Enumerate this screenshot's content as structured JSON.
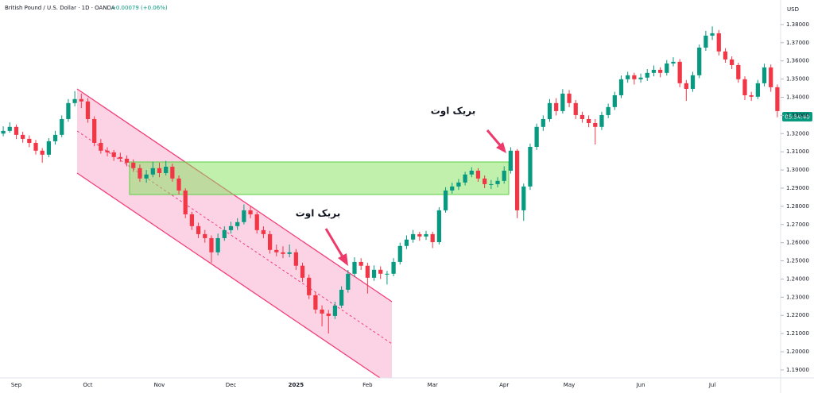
{
  "chart_data": {
    "type": "candlestick",
    "title": "British Pound / U.S. Dollar · 1D · OANDA",
    "change": "+0.00079 (+0.06%)",
    "currency": "USD",
    "countdown": "05:54:40",
    "annotations": [
      "بریک اوت",
      "بریک اوت"
    ],
    "up_color": "#089981",
    "down_color": "#f23645",
    "grid": false,
    "ylim": [
      1.1856,
      1.3935
    ],
    "yticks": [
      {
        "value": 1.19,
        "label": "1.19000"
      },
      {
        "value": 1.2,
        "label": "1.20000"
      },
      {
        "value": 1.21,
        "label": "1.21000"
      },
      {
        "value": 1.22,
        "label": "1.22000"
      },
      {
        "value": 1.23,
        "label": "1.23000"
      },
      {
        "value": 1.24,
        "label": "1.24000"
      },
      {
        "value": 1.25,
        "label": "1.25000"
      },
      {
        "value": 1.26,
        "label": "1.26000"
      },
      {
        "value": 1.27,
        "label": "1.27000"
      },
      {
        "value": 1.28,
        "label": "1.28000"
      },
      {
        "value": 1.29,
        "label": "1.29000"
      },
      {
        "value": 1.3,
        "label": "1.30000"
      },
      {
        "value": 1.31,
        "label": "1.31000"
      },
      {
        "value": 1.32,
        "label": "1.32000"
      },
      {
        "value": 1.33,
        "label": "1.33000"
      },
      {
        "value": 1.34,
        "label": "1.34000"
      },
      {
        "value": 1.35,
        "label": "1.35000"
      },
      {
        "value": 1.36,
        "label": "1.36000"
      },
      {
        "value": 1.37,
        "label": "1.37000"
      },
      {
        "value": 1.38,
        "label": "1.38000"
      }
    ],
    "categories": [
      null,
      null,
      "Sep",
      null,
      null,
      null,
      null,
      null,
      null,
      null,
      null,
      null,
      null,
      "Oct",
      null,
      null,
      null,
      null,
      null,
      null,
      null,
      null,
      null,
      null,
      "Nov",
      null,
      null,
      null,
      null,
      null,
      null,
      null,
      null,
      null,
      null,
      "Dec",
      null,
      null,
      null,
      null,
      null,
      null,
      null,
      null,
      null,
      "2025",
      null,
      null,
      null,
      null,
      null,
      null,
      null,
      null,
      null,
      null,
      "Feb",
      null,
      null,
      null,
      null,
      null,
      null,
      null,
      null,
      null,
      "Mar",
      null,
      null,
      null,
      null,
      null,
      null,
      null,
      null,
      null,
      null,
      "Apr",
      null,
      null,
      null,
      null,
      null,
      null,
      null,
      null,
      null,
      "May",
      null,
      null,
      null,
      null,
      null,
      null,
      null,
      null,
      null,
      null,
      "Jun",
      null,
      null,
      null,
      null,
      null,
      null,
      null,
      null,
      null,
      null,
      "Jul",
      null,
      null,
      null,
      null,
      null,
      null,
      null,
      null,
      null,
      null
    ],
    "ohlc": [
      [
        1.32,
        1.324,
        1.3185,
        1.3215
      ],
      [
        1.3215,
        1.3262,
        1.3205,
        1.3237
      ],
      [
        1.3237,
        1.325,
        1.317,
        1.3193
      ],
      [
        1.3193,
        1.321,
        1.315,
        1.3171
      ],
      [
        1.3171,
        1.319,
        1.3125,
        1.3149
      ],
      [
        1.3149,
        1.3165,
        1.3085,
        1.3106
      ],
      [
        1.3106,
        1.312,
        1.304,
        1.3084
      ],
      [
        1.3084,
        1.3175,
        1.307,
        1.3158
      ],
      [
        1.3158,
        1.3215,
        1.314,
        1.3193
      ],
      [
        1.3193,
        1.33,
        1.318,
        1.328
      ],
      [
        1.328,
        1.339,
        1.3265,
        1.3368
      ],
      [
        1.3368,
        1.3434,
        1.335,
        1.339
      ],
      [
        1.339,
        1.342,
        1.334,
        1.3377
      ],
      [
        1.3377,
        1.3395,
        1.326,
        1.328
      ],
      [
        1.328,
        1.3295,
        1.313,
        1.3149
      ],
      [
        1.3149,
        1.317,
        1.309,
        1.3106
      ],
      [
        1.3106,
        1.3125,
        1.3075,
        1.3097
      ],
      [
        1.3097,
        1.311,
        1.305,
        1.3071
      ],
      [
        1.3071,
        1.3095,
        1.3045,
        1.3062
      ],
      [
        1.3062,
        1.308,
        1.302,
        1.304
      ],
      [
        1.304,
        1.3058,
        1.299,
        1.301
      ],
      [
        1.301,
        1.303,
        1.2935,
        1.2953
      ],
      [
        1.2953,
        1.3,
        1.293,
        1.2975
      ],
      [
        1.2975,
        1.3045,
        1.296,
        1.301
      ],
      [
        1.301,
        1.304,
        1.296,
        1.2983
      ],
      [
        1.2983,
        1.305,
        1.297,
        1.3018
      ],
      [
        1.3018,
        1.3035,
        1.2935,
        1.2953
      ],
      [
        1.2953,
        1.297,
        1.2865,
        1.2887
      ],
      [
        1.2887,
        1.29,
        1.2735,
        1.2756
      ],
      [
        1.2756,
        1.277,
        1.267,
        1.2691
      ],
      [
        1.2691,
        1.271,
        1.2625,
        1.2647
      ],
      [
        1.2647,
        1.267,
        1.26,
        1.2625
      ],
      [
        1.2625,
        1.264,
        1.249,
        1.2547
      ],
      [
        1.2547,
        1.265,
        1.253,
        1.2625
      ],
      [
        1.2625,
        1.269,
        1.261,
        1.2669
      ],
      [
        1.2669,
        1.2715,
        1.265,
        1.2691
      ],
      [
        1.2691,
        1.2735,
        1.267,
        1.2713
      ],
      [
        1.2713,
        1.281,
        1.27,
        1.2778
      ],
      [
        1.2778,
        1.28,
        1.2735,
        1.2756
      ],
      [
        1.2756,
        1.277,
        1.265,
        1.2669
      ],
      [
        1.2669,
        1.269,
        1.2625,
        1.2647
      ],
      [
        1.2647,
        1.2665,
        1.254,
        1.256
      ],
      [
        1.256,
        1.259,
        1.2525,
        1.2547
      ],
      [
        1.2547,
        1.258,
        1.2515,
        1.2538
      ],
      [
        1.2538,
        1.259,
        1.252,
        1.2547
      ],
      [
        1.2547,
        1.2565,
        1.245,
        1.2473
      ],
      [
        1.2473,
        1.249,
        1.2385,
        1.2407
      ],
      [
        1.2407,
        1.2425,
        1.229,
        1.2311
      ],
      [
        1.2311,
        1.233,
        1.221,
        1.2232
      ],
      [
        1.2232,
        1.2255,
        1.214,
        1.221
      ],
      [
        1.221,
        1.223,
        1.21,
        1.2197
      ],
      [
        1.2197,
        1.2275,
        1.218,
        1.2254
      ],
      [
        1.2254,
        1.236,
        1.224,
        1.2341
      ],
      [
        1.2341,
        1.245,
        1.2325,
        1.2429
      ],
      [
        1.2429,
        1.252,
        1.241,
        1.2494
      ],
      [
        1.2494,
        1.2515,
        1.245,
        1.2473
      ],
      [
        1.2473,
        1.249,
        1.232,
        1.2407
      ],
      [
        1.2407,
        1.2475,
        1.239,
        1.2451
      ],
      [
        1.2451,
        1.247,
        1.24,
        1.2429
      ],
      [
        1.2429,
        1.2445,
        1.237,
        1.2429
      ],
      [
        1.2429,
        1.2515,
        1.2415,
        1.2494
      ],
      [
        1.2494,
        1.26,
        1.248,
        1.2582
      ],
      [
        1.2582,
        1.264,
        1.2565,
        1.2617
      ],
      [
        1.2617,
        1.267,
        1.26,
        1.2647
      ],
      [
        1.2647,
        1.266,
        1.261,
        1.2634
      ],
      [
        1.2634,
        1.2665,
        1.2615,
        1.2647
      ],
      [
        1.2647,
        1.266,
        1.257,
        1.2603
      ],
      [
        1.2603,
        1.2795,
        1.259,
        1.2778
      ],
      [
        1.2778,
        1.2905,
        1.2765,
        1.2887
      ],
      [
        1.2887,
        1.293,
        1.287,
        1.2909
      ],
      [
        1.2909,
        1.295,
        1.289,
        1.2931
      ],
      [
        1.2931,
        1.299,
        1.2915,
        1.2975
      ],
      [
        1.2975,
        1.3015,
        1.296,
        1.2996
      ],
      [
        1.2996,
        1.301,
        1.2935,
        1.2953
      ],
      [
        1.2953,
        1.297,
        1.29,
        1.2922
      ],
      [
        1.2922,
        1.2945,
        1.2895,
        1.2922
      ],
      [
        1.2922,
        1.296,
        1.2905,
        1.294
      ],
      [
        1.294,
        1.302,
        1.2925,
        1.2996
      ],
      [
        1.2996,
        1.3125,
        1.298,
        1.3106
      ],
      [
        1.3106,
        1.3115,
        1.2735,
        1.2778
      ],
      [
        1.2778,
        1.2925,
        1.272,
        1.2909
      ],
      [
        1.2909,
        1.3145,
        1.289,
        1.3127
      ],
      [
        1.3127,
        1.3255,
        1.311,
        1.3237
      ],
      [
        1.3237,
        1.33,
        1.3215,
        1.328
      ],
      [
        1.328,
        1.339,
        1.3265,
        1.3368
      ],
      [
        1.3368,
        1.3395,
        1.33,
        1.3324
      ],
      [
        1.3324,
        1.3445,
        1.331,
        1.342
      ],
      [
        1.342,
        1.344,
        1.3345,
        1.3368
      ],
      [
        1.3368,
        1.3385,
        1.328,
        1.3302
      ],
      [
        1.3302,
        1.332,
        1.326,
        1.328
      ],
      [
        1.328,
        1.33,
        1.3235,
        1.3258
      ],
      [
        1.3258,
        1.328,
        1.314,
        1.3237
      ],
      [
        1.3237,
        1.332,
        1.322,
        1.3302
      ],
      [
        1.3302,
        1.3365,
        1.3285,
        1.3346
      ],
      [
        1.3346,
        1.343,
        1.333,
        1.3411
      ],
      [
        1.3411,
        1.352,
        1.3395,
        1.3499
      ],
      [
        1.3499,
        1.354,
        1.348,
        1.3521
      ],
      [
        1.3521,
        1.3535,
        1.347,
        1.3499
      ],
      [
        1.3499,
        1.353,
        1.348,
        1.3508
      ],
      [
        1.3508,
        1.3555,
        1.349,
        1.3534
      ],
      [
        1.3534,
        1.3575,
        1.3515,
        1.3551
      ],
      [
        1.3551,
        1.3565,
        1.351,
        1.3534
      ],
      [
        1.3534,
        1.3605,
        1.352,
        1.3586
      ],
      [
        1.3586,
        1.362,
        1.357,
        1.3595
      ],
      [
        1.3595,
        1.361,
        1.3455,
        1.3477
      ],
      [
        1.3477,
        1.3495,
        1.338,
        1.3446
      ],
      [
        1.3446,
        1.354,
        1.343,
        1.3521
      ],
      [
        1.3521,
        1.369,
        1.3505,
        1.3673
      ],
      [
        1.3673,
        1.3765,
        1.3655,
        1.3739
      ],
      [
        1.3739,
        1.379,
        1.3715,
        1.3752
      ],
      [
        1.3752,
        1.377,
        1.363,
        1.3652
      ],
      [
        1.3652,
        1.367,
        1.359,
        1.3608
      ],
      [
        1.3608,
        1.3625,
        1.3555,
        1.3577
      ],
      [
        1.3577,
        1.359,
        1.348,
        1.3499
      ],
      [
        1.3499,
        1.3515,
        1.3385,
        1.3411
      ],
      [
        1.3411,
        1.343,
        1.338,
        1.3403
      ],
      [
        1.3403,
        1.3495,
        1.339,
        1.3477
      ],
      [
        1.3477,
        1.3585,
        1.346,
        1.3564
      ],
      [
        1.3564,
        1.358,
        1.343,
        1.3455
      ],
      [
        1.3455,
        1.347,
        1.329,
        1.3324
      ]
    ]
  }
}
